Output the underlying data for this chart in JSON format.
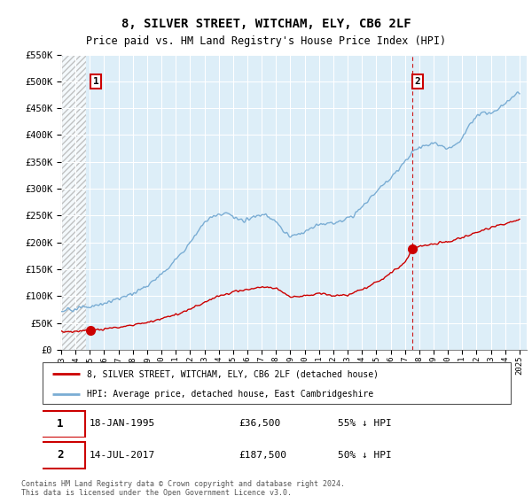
{
  "title": "8, SILVER STREET, WITCHAM, ELY, CB6 2LF",
  "subtitle": "Price paid vs. HM Land Registry's House Price Index (HPI)",
  "ylim": [
    0,
    550000
  ],
  "xlim_start": 1993.0,
  "xlim_end": 2025.5,
  "bg_color": "#ddeef8",
  "hatch_zone_end": 1994.75,
  "red_line_color": "#cc0000",
  "blue_line_color": "#7aadd4",
  "transaction1_date": 1995.05,
  "transaction1_value": 36500,
  "transaction2_date": 2017.54,
  "transaction2_value": 187500,
  "legend_line1": "8, SILVER STREET, WITCHAM, ELY, CB6 2LF (detached house)",
  "legend_line2": "HPI: Average price, detached house, East Cambridgeshire",
  "footer": "Contains HM Land Registry data © Crown copyright and database right 2024.\nThis data is licensed under the Open Government Licence v3.0.",
  "dashed_line_x": 2017.54,
  "hpi_years": [
    1993.0,
    1993.5,
    1994.0,
    1994.5,
    1995.0,
    1995.5,
    1996.0,
    1996.5,
    1997.0,
    1997.5,
    1998.0,
    1998.5,
    1999.0,
    1999.5,
    2000.0,
    2000.5,
    2001.0,
    2001.5,
    2002.0,
    2002.5,
    2003.0,
    2003.5,
    2004.0,
    2004.5,
    2005.0,
    2005.5,
    2006.0,
    2006.5,
    2007.0,
    2007.5,
    2008.0,
    2008.5,
    2009.0,
    2009.5,
    2010.0,
    2010.5,
    2011.0,
    2011.5,
    2012.0,
    2012.5,
    2013.0,
    2013.5,
    2014.0,
    2014.5,
    2015.0,
    2015.5,
    2016.0,
    2016.5,
    2017.0,
    2017.5,
    2018.0,
    2018.5,
    2019.0,
    2019.5,
    2020.0,
    2020.5,
    2021.0,
    2021.5,
    2022.0,
    2022.5,
    2023.0,
    2023.5,
    2024.0,
    2024.5,
    2025.0
  ],
  "hpi_values": [
    72000,
    74000,
    76000,
    78000,
    80000,
    83000,
    86000,
    90000,
    95000,
    100000,
    105000,
    112000,
    120000,
    130000,
    140000,
    155000,
    168000,
    182000,
    200000,
    220000,
    238000,
    248000,
    252000,
    255000,
    248000,
    240000,
    242000,
    248000,
    252000,
    248000,
    238000,
    220000,
    210000,
    215000,
    220000,
    228000,
    232000,
    235000,
    235000,
    238000,
    245000,
    255000,
    268000,
    280000,
    295000,
    308000,
    320000,
    335000,
    350000,
    368000,
    378000,
    382000,
    385000,
    382000,
    375000,
    380000,
    395000,
    418000,
    435000,
    442000,
    440000,
    448000,
    458000,
    472000,
    480000
  ],
  "red_years": [
    1993.0,
    1994.0,
    1995.05,
    1996.0,
    1997.0,
    1998.0,
    1999.0,
    2000.0,
    2001.0,
    2002.0,
    2003.0,
    2004.0,
    2005.0,
    2006.0,
    2007.0,
    2008.0,
    2009.0,
    2010.0,
    2011.0,
    2012.0,
    2013.0,
    2014.0,
    2015.0,
    2016.0,
    2017.0,
    2017.54,
    2018.0,
    2019.0,
    2020.0,
    2021.0,
    2022.0,
    2023.0,
    2024.0,
    2025.0
  ],
  "red_values": [
    33000,
    34000,
    36500,
    38000,
    42000,
    46000,
    50000,
    57000,
    65000,
    76000,
    88000,
    100000,
    108000,
    112000,
    118000,
    115000,
    98000,
    100000,
    105000,
    100000,
    102000,
    112000,
    125000,
    142000,
    162000,
    187500,
    192000,
    197000,
    202000,
    208000,
    218000,
    228000,
    235000,
    242000
  ]
}
